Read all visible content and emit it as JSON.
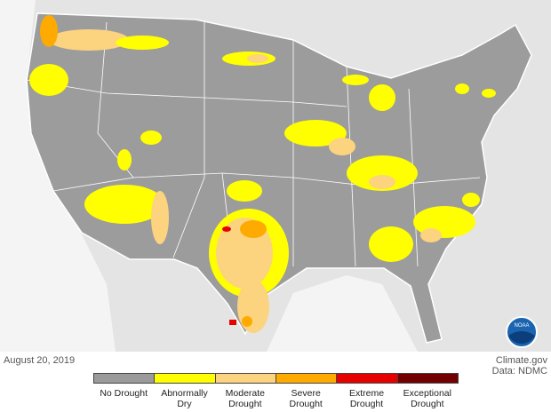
{
  "map": {
    "date": "August 20, 2019",
    "source": "Climate.gov",
    "data_credit": "Data: NDMC",
    "logo": "NOAA",
    "legend": [
      {
        "label": "No Drought",
        "color": "#9b9b9b"
      },
      {
        "label": "Abnormally Dry",
        "color": "#ffff00"
      },
      {
        "label": "Moderate Drought",
        "color": "#fcd37f"
      },
      {
        "label": "Severe Drought",
        "color": "#ffaa00"
      },
      {
        "label": "Extreme Drought",
        "color": "#e60000"
      },
      {
        "label": "Exceptional Drought",
        "color": "#730000"
      }
    ]
  }
}
